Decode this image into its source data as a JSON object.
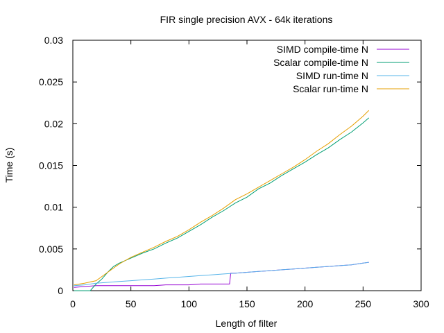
{
  "chart_data": {
    "type": "line",
    "title": "FIR single precision AVX - 64k iterations",
    "xlabel": "Length of filter",
    "ylabel": "Time (s)",
    "xlim": [
      0,
      300
    ],
    "ylim": [
      0,
      0.03
    ],
    "x_ticks": [
      0,
      50,
      100,
      150,
      200,
      250,
      300
    ],
    "x_tick_labels": [
      "0",
      "50",
      "100",
      "150",
      "200",
      "250",
      "300"
    ],
    "y_ticks": [
      0,
      0.005,
      0.01,
      0.015,
      0.02,
      0.025,
      0.03
    ],
    "y_tick_labels": [
      "0",
      "0.005",
      "0.01",
      "0.015",
      "0.02",
      "0.025",
      "0.03"
    ],
    "grid": false,
    "legend_position": "top-right",
    "series": [
      {
        "name": "SIMD compile-time N",
        "color": "#9400d3",
        "x": [
          1,
          10,
          20,
          30,
          40,
          50,
          60,
          70,
          80,
          90,
          100,
          110,
          120,
          130,
          135,
          136,
          140,
          150,
          160,
          170,
          180,
          190,
          200,
          210,
          220,
          230,
          240,
          250,
          255
        ],
        "y": [
          0.0004,
          0.0005,
          0.0006,
          0.0006,
          0.0006,
          0.0006,
          0.0006,
          0.0006,
          0.0007,
          0.0007,
          0.0007,
          0.0008,
          0.0008,
          0.0008,
          0.0008,
          0.0021,
          0.0021,
          0.0022,
          0.0023,
          0.0024,
          0.0025,
          0.0026,
          0.0027,
          0.0028,
          0.0029,
          0.003,
          0.0031,
          0.0033,
          0.0034
        ]
      },
      {
        "name": "Scalar compile-time N",
        "color": "#009e73",
        "x": [
          1,
          10,
          15,
          20,
          25,
          30,
          35,
          40,
          50,
          60,
          70,
          80,
          90,
          100,
          110,
          120,
          130,
          140,
          150,
          160,
          170,
          180,
          190,
          200,
          210,
          220,
          230,
          240,
          250,
          255
        ],
        "y": [
          0,
          0,
          0,
          0.0008,
          0.0014,
          0.0022,
          0.0029,
          0.0033,
          0.0039,
          0.0045,
          0.005,
          0.0057,
          0.0063,
          0.0071,
          0.0079,
          0.0088,
          0.0096,
          0.0105,
          0.0112,
          0.0122,
          0.0129,
          0.0138,
          0.0146,
          0.0154,
          0.0163,
          0.0171,
          0.0181,
          0.019,
          0.0201,
          0.0207
        ]
      },
      {
        "name": "SIMD run-time N",
        "color": "#56b4e9",
        "x": [
          1,
          10,
          20,
          30,
          40,
          50,
          60,
          70,
          80,
          90,
          100,
          110,
          120,
          130,
          140,
          150,
          160,
          170,
          180,
          190,
          200,
          210,
          220,
          230,
          240,
          250,
          255
        ],
        "y": [
          0.0006,
          0.0007,
          0.0009,
          0.001,
          0.0011,
          0.0012,
          0.0013,
          0.0014,
          0.0015,
          0.0016,
          0.0017,
          0.0018,
          0.0019,
          0.002,
          0.0021,
          0.0022,
          0.0023,
          0.0024,
          0.0025,
          0.0026,
          0.0027,
          0.0028,
          0.0029,
          0.003,
          0.0031,
          0.0033,
          0.0034
        ]
      },
      {
        "name": "Scalar run-time N",
        "color": "#e69f00",
        "x": [
          1,
          10,
          20,
          30,
          40,
          50,
          60,
          70,
          80,
          90,
          100,
          110,
          120,
          130,
          140,
          150,
          160,
          170,
          180,
          190,
          200,
          210,
          220,
          230,
          240,
          250,
          255
        ],
        "y": [
          0.0007,
          0.0009,
          0.0012,
          0.0022,
          0.0032,
          0.004,
          0.0046,
          0.0052,
          0.0059,
          0.0065,
          0.0073,
          0.0082,
          0.009,
          0.0099,
          0.0109,
          0.0116,
          0.0124,
          0.0132,
          0.014,
          0.0148,
          0.0157,
          0.0167,
          0.0176,
          0.0187,
          0.0197,
          0.0209,
          0.0216
        ]
      }
    ]
  }
}
